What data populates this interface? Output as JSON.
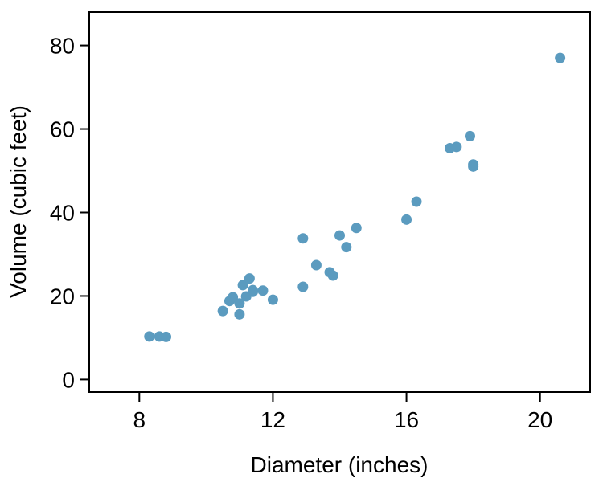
{
  "chart_data": {
    "type": "scatter",
    "title": "",
    "xlabel": "Diameter (inches)",
    "ylabel": "Volume (cubic feet)",
    "xlim": [
      6.5,
      21.5
    ],
    "ylim": [
      -3,
      88
    ],
    "xticks": [
      8,
      12,
      16,
      20
    ],
    "yticks": [
      0,
      20,
      40,
      60,
      80
    ],
    "xtick_labels": [
      "8",
      "12",
      "16",
      "20"
    ],
    "ytick_labels": [
      "0",
      "20",
      "40",
      "60",
      "80"
    ],
    "grid": false,
    "legend": "none",
    "point_color": "#5b9bbf",
    "series": [
      {
        "points": [
          {
            "x": 8.3,
            "y": 10.3
          },
          {
            "x": 8.6,
            "y": 10.3
          },
          {
            "x": 8.8,
            "y": 10.2
          },
          {
            "x": 10.5,
            "y": 16.4
          },
          {
            "x": 10.7,
            "y": 18.8
          },
          {
            "x": 10.8,
            "y": 19.7
          },
          {
            "x": 11.0,
            "y": 15.6
          },
          {
            "x": 11.0,
            "y": 18.2
          },
          {
            "x": 11.1,
            "y": 22.6
          },
          {
            "x": 11.2,
            "y": 19.9
          },
          {
            "x": 11.3,
            "y": 24.2
          },
          {
            "x": 11.4,
            "y": 21.0
          },
          {
            "x": 11.4,
            "y": 21.4
          },
          {
            "x": 11.7,
            "y": 21.3
          },
          {
            "x": 12.0,
            "y": 19.1
          },
          {
            "x": 12.9,
            "y": 22.2
          },
          {
            "x": 12.9,
            "y": 33.8
          },
          {
            "x": 13.3,
            "y": 27.4
          },
          {
            "x": 13.7,
            "y": 25.7
          },
          {
            "x": 13.8,
            "y": 24.9
          },
          {
            "x": 14.0,
            "y": 34.5
          },
          {
            "x": 14.2,
            "y": 31.7
          },
          {
            "x": 14.5,
            "y": 36.3
          },
          {
            "x": 16.0,
            "y": 38.3
          },
          {
            "x": 16.3,
            "y": 42.6
          },
          {
            "x": 17.3,
            "y": 55.4
          },
          {
            "x": 17.5,
            "y": 55.7
          },
          {
            "x": 17.9,
            "y": 58.3
          },
          {
            "x": 18.0,
            "y": 51.5
          },
          {
            "x": 18.0,
            "y": 51.0
          },
          {
            "x": 20.6,
            "y": 77.0
          }
        ]
      }
    ]
  }
}
